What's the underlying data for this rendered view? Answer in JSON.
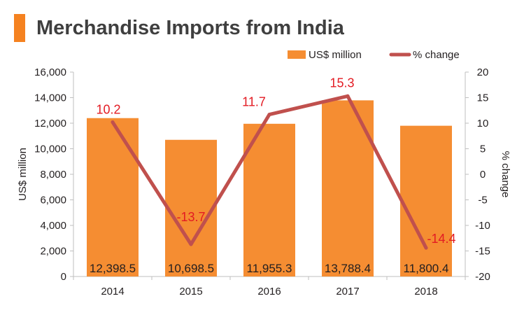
{
  "title": "Merchandise Imports from India",
  "colors": {
    "title_accent": "#f58220",
    "bar": "#f58d32",
    "line": "#c0504d",
    "line_label": "#e31b23",
    "axis": "#bfbfbf"
  },
  "chart_data": {
    "type": "bar+line",
    "categories": [
      "2014",
      "2015",
      "2016",
      "2017",
      "2018"
    ],
    "series": [
      {
        "name": "US$ million",
        "type": "bar",
        "axis": "left",
        "values": [
          12398.5,
          10698.5,
          11955.3,
          13788.4,
          11800.4
        ],
        "labels": [
          "12,398.5",
          "10,698.5",
          "11,955.3",
          "13,788.4",
          "11,800.4"
        ]
      },
      {
        "name": "% change",
        "type": "line",
        "axis": "right",
        "values": [
          10.2,
          -13.7,
          11.7,
          15.3,
          -14.4
        ],
        "labels": [
          "10.2",
          "-13.7",
          "11.7",
          "15.3",
          "-14.4"
        ]
      }
    ],
    "ylabel": "US$ million",
    "y2label": "% change",
    "ylim": [
      0,
      16000
    ],
    "y2lim": [
      -20,
      20
    ],
    "yticks": [
      "0",
      "2,000",
      "4,000",
      "6,000",
      "8,000",
      "10,000",
      "12,000",
      "14,000",
      "16,000"
    ],
    "y2ticks": [
      "-20",
      "-15",
      "-10",
      "-5",
      "0",
      "5",
      "10",
      "15",
      "20"
    ],
    "legend": "top-right",
    "grid": false
  }
}
